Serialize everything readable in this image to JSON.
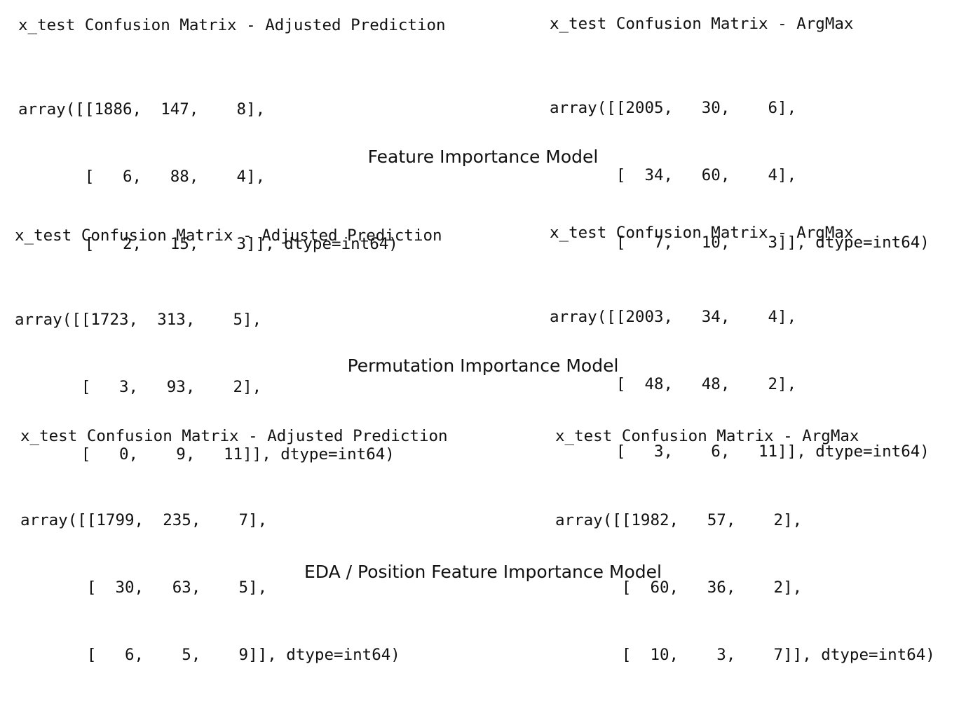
{
  "sections": [
    {
      "caption": "Feature Importance Model",
      "adjusted": {
        "title": "x_test Confusion Matrix - Adjusted Prediction",
        "rows": [
          "array([[1886,  147,    8],",
          "       [   6,   88,    4],",
          "       [   2,   15,    3]], dtype=int64)"
        ]
      },
      "argmax": {
        "title": "x_test Confusion Matrix - ArgMax",
        "rows": [
          "array([[2005,   30,    6],",
          "       [  34,   60,    4],",
          "       [   7,   10,    3]], dtype=int64)"
        ]
      }
    },
    {
      "caption": "Permutation Importance Model",
      "adjusted": {
        "title": "x_test Confusion Matrix - Adjusted Prediction",
        "rows": [
          "array([[1723,  313,    5],",
          "       [   3,   93,    2],",
          "       [   0,    9,   11]], dtype=int64)"
        ]
      },
      "argmax": {
        "title": "x_test Confusion Matrix - ArgMax",
        "rows": [
          "array([[2003,   34,    4],",
          "       [  48,   48,    2],",
          "       [   3,    6,   11]], dtype=int64)"
        ]
      }
    },
    {
      "caption": "EDA / Position Feature Importance Model",
      "adjusted": {
        "title": "x_test Confusion Matrix - Adjusted Prediction",
        "rows": [
          "array([[1799,  235,    7],",
          "       [  30,   63,    5],",
          "       [   6,    5,    9]], dtype=int64)"
        ]
      },
      "argmax": {
        "title": "x_test Confusion Matrix - ArgMax",
        "rows": [
          "array([[1982,   57,    2],",
          "       [  60,   36,    2],",
          "       [  10,    3,    7]], dtype=int64)"
        ]
      }
    }
  ]
}
